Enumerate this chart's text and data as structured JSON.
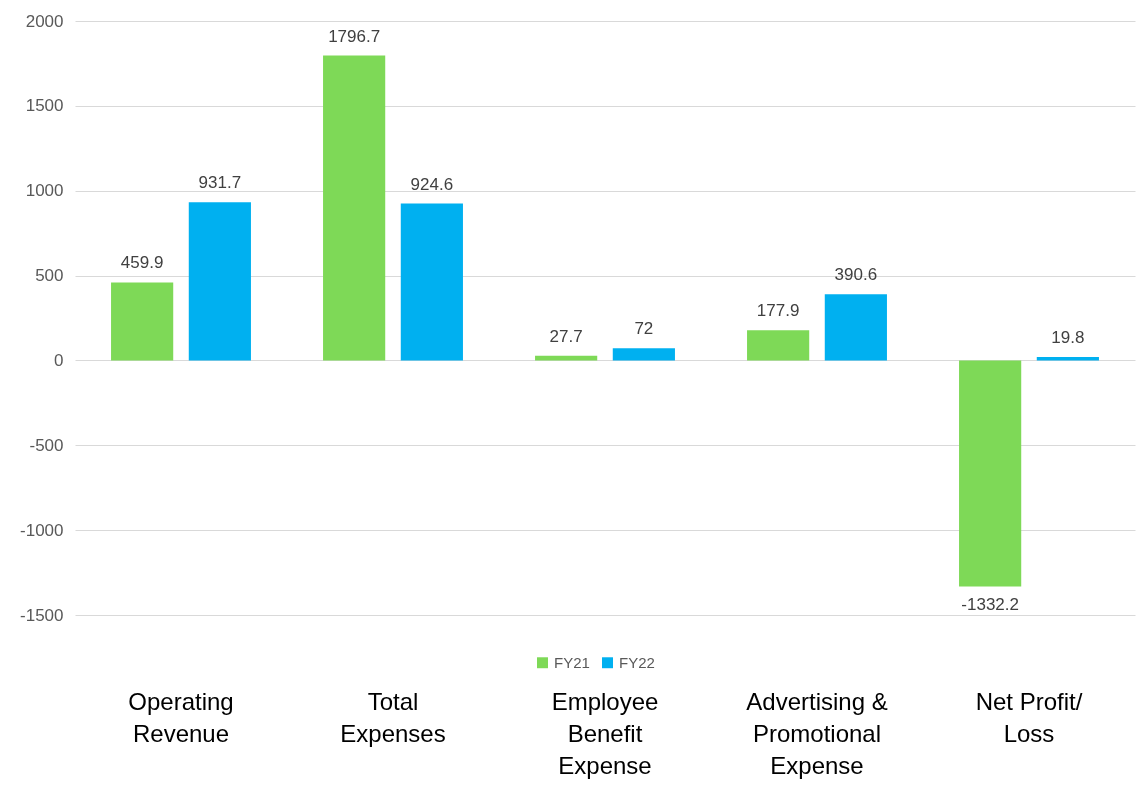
{
  "chart_data": {
    "type": "bar",
    "categories": [
      "Operating Revenue",
      "Total Expenses",
      "Employee Benefit Expense",
      "Advertising & Promotional Expense",
      "Net Profit/ Loss"
    ],
    "series": [
      {
        "name": "FY21",
        "color": "#7ed957",
        "values": [
          459.9,
          1796.7,
          27.7,
          177.9,
          -1332.2
        ]
      },
      {
        "name": "FY22",
        "color": "#00b0f0",
        "values": [
          931.7,
          924.6,
          72,
          390.6,
          19.8
        ]
      }
    ],
    "ylim": [
      -1500,
      2000
    ],
    "yticks": [
      -1500,
      -1000,
      -500,
      0,
      500,
      1000,
      1500,
      2000
    ],
    "grid": "y",
    "legend": "bottom",
    "data_labels": true
  }
}
